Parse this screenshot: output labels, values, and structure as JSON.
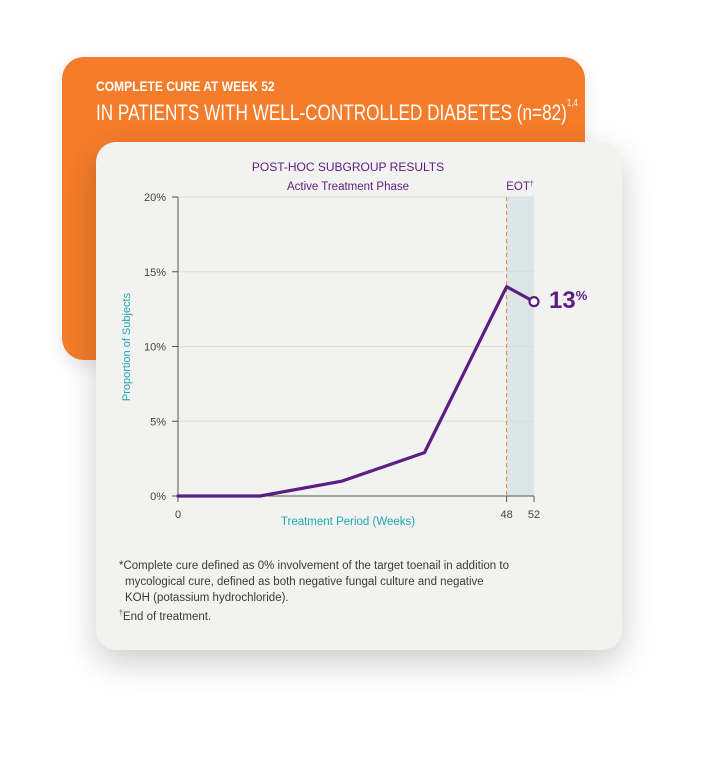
{
  "header": {
    "line1": "COMPLETE CURE AT WEEK 52",
    "line2": "IN PATIENTS WITH WELL-CONTROLLED DIABETES (n=82)",
    "line2_refs": "1,4"
  },
  "colors": {
    "orange": "#f47c2a",
    "purple": "#5b1e82",
    "teal": "#1fa6b3",
    "eot_band": "#dde6e6",
    "eot_line": "#f47c2a"
  },
  "chart_data": {
    "type": "line",
    "title": "POST-HOC SUBGROUP RESULTS",
    "subtitle": "Active Treatment Phase",
    "eot_label": "EOT",
    "eot_mark": "†",
    "xlabel": "Treatment Period (Weeks)",
    "ylabel": "Proportion of Subjects",
    "xlim": [
      0,
      52
    ],
    "ylim": [
      0,
      20
    ],
    "y_ticks": [
      0,
      5,
      10,
      15,
      20
    ],
    "y_tick_labels": [
      "0%",
      "5%",
      "10%",
      "15%",
      "20%"
    ],
    "x_tick_labels": [
      {
        "x": 0,
        "label": "0"
      },
      {
        "x": 48,
        "label": "48"
      },
      {
        "x": 52,
        "label": "52"
      }
    ],
    "eot_range": [
      48,
      52
    ],
    "grid": true,
    "series": [
      {
        "x": [
          0,
          12,
          24,
          36,
          48,
          52
        ],
        "y": [
          0,
          0,
          1,
          2.9,
          14,
          13
        ]
      }
    ],
    "end_label": "13",
    "end_label_unit": "%"
  },
  "footnotes": {
    "line1": "*Complete cure defined as 0% involvement of the target toenail in addition to",
    "line2": "mycological cure, defined as both negative fungal culture and negative",
    "line3": "KOH (potassium hydrochloride).",
    "line4_mark": "†",
    "line4": "End of treatment."
  }
}
